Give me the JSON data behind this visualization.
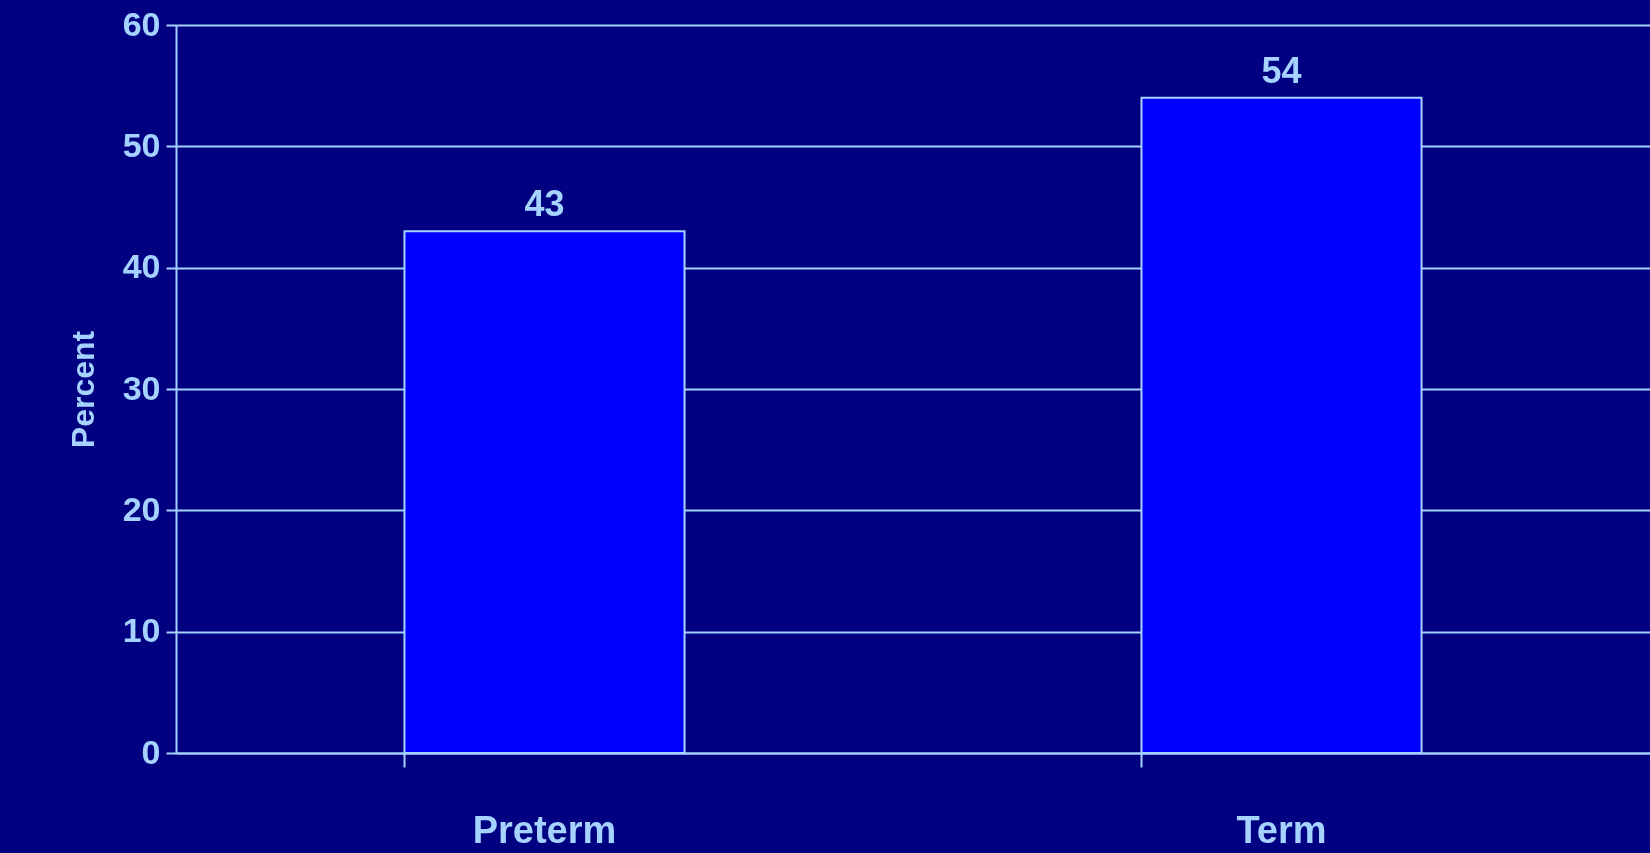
{
  "chart_data": {
    "type": "bar",
    "ylabel": "Percent",
    "categories": [
      "Preterm",
      "Term"
    ],
    "values": [
      43,
      54
    ],
    "color": "#0000ff",
    "ylim": [
      0,
      60
    ],
    "yticks": [
      0,
      10,
      20,
      30,
      40,
      50,
      60
    ],
    "grid": "y",
    "data_labels": true
  }
}
